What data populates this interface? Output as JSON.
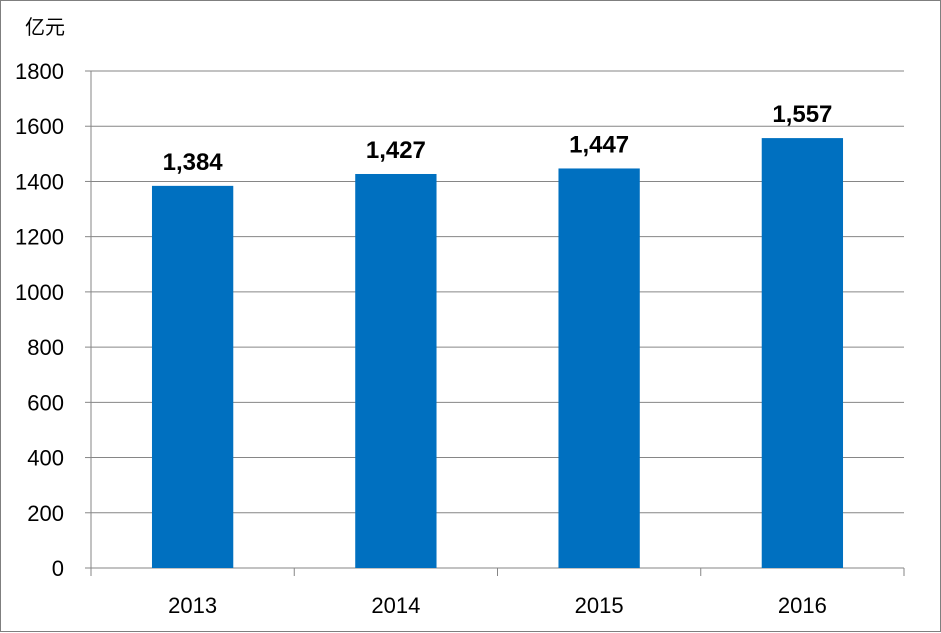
{
  "chart_data": {
    "type": "bar",
    "title": "",
    "xlabel": "",
    "ylabel": "亿元",
    "categories": [
      "2013",
      "2014",
      "2015",
      "2016"
    ],
    "values": [
      1384,
      1427,
      1447,
      1557
    ],
    "data_labels": [
      "1,384",
      "1,427",
      "1,447",
      "1,557"
    ],
    "ylim": [
      0,
      1800
    ],
    "yticks": [
      0,
      200,
      400,
      600,
      800,
      1000,
      1200,
      1400,
      1600,
      1800
    ],
    "grid": true,
    "legend": "none",
    "bar_color": "#0070c0",
    "grid_color": "#868686"
  }
}
